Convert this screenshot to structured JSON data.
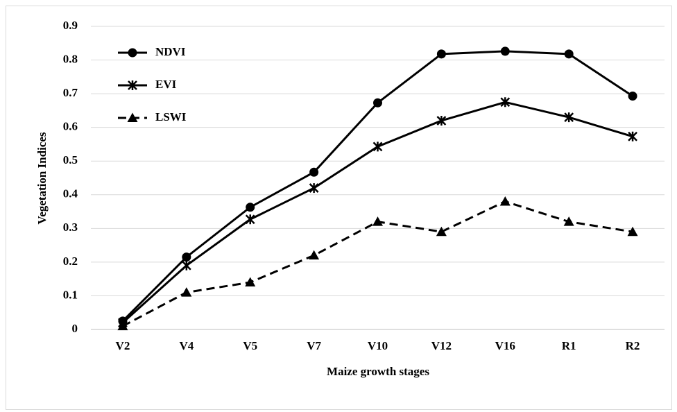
{
  "chart_data": {
    "type": "line",
    "categories": [
      "V2",
      "V4",
      "V5",
      "V7",
      "V10",
      "V12",
      "V16",
      "R1",
      "R2"
    ],
    "series": [
      {
        "name": "NDVI",
        "color": "#000000",
        "marker": "circle",
        "line_style": "solid",
        "values": [
          0.025,
          0.215,
          0.363,
          0.467,
          0.673,
          0.818,
          0.826,
          0.818,
          0.693
        ]
      },
      {
        "name": "EVI",
        "color": "#000000",
        "marker": "asterisk",
        "line_style": "solid",
        "values": [
          0.02,
          0.19,
          0.327,
          0.42,
          0.543,
          0.62,
          0.675,
          0.63,
          0.573
        ]
      },
      {
        "name": "LSWI",
        "color": "#000000",
        "marker": "triangle",
        "line_style": "dashed",
        "values": [
          0.01,
          0.11,
          0.14,
          0.22,
          0.32,
          0.29,
          0.38,
          0.32,
          0.29
        ]
      }
    ],
    "xlabel": "Maize growth stages",
    "ylabel": "Vegetation Indices",
    "ylim": [
      0,
      0.9
    ],
    "yticks": [
      0,
      0.1,
      0.2,
      0.3,
      0.4,
      0.5,
      0.6,
      0.7,
      0.8,
      0.9
    ],
    "grid": true,
    "legend": "upper-left"
  }
}
